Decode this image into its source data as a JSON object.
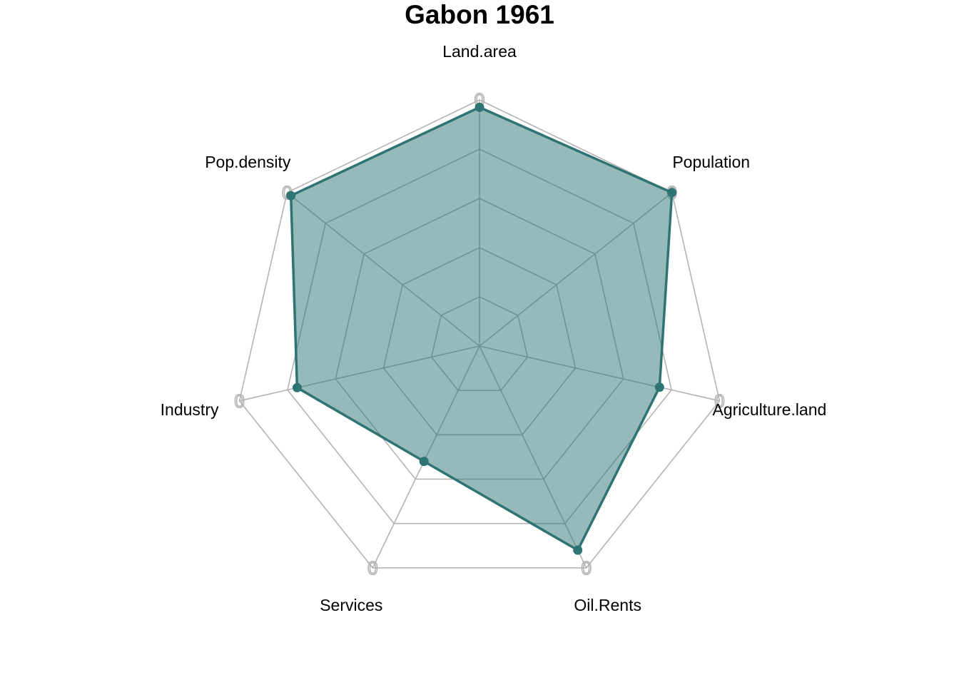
{
  "chart_data": {
    "type": "radar",
    "title": "Gabon 1961",
    "axes": [
      "Land.area",
      "Population",
      "Agriculture.land",
      "Oil.Rents",
      "Services",
      "Industry",
      "Pop.density"
    ],
    "axis_tick_label": "0",
    "grid_levels": [
      0.2,
      0.4,
      0.6,
      0.8,
      1.0
    ],
    "range": [
      0,
      1
    ],
    "series": [
      {
        "values": [
          0.97,
          1.0,
          0.75,
          0.92,
          0.52,
          0.76,
          0.98
        ],
        "color": "#2e7473",
        "fill_color": "#2e7473",
        "fill_opacity": 0.5
      }
    ],
    "grid_color": "#b3b3b3",
    "grid": true
  }
}
